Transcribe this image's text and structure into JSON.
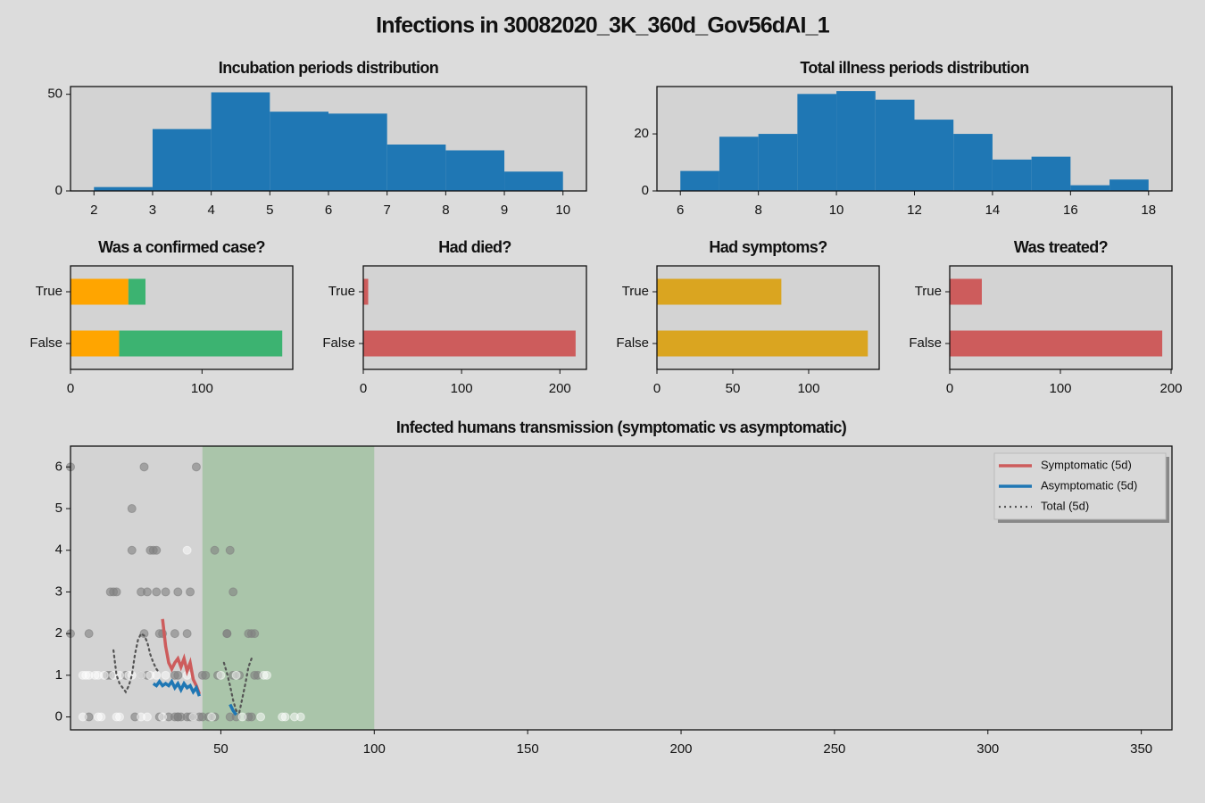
{
  "title": "Infections in 30082020_3K_360d_Gov56dAI_1",
  "chart_data": [
    {
      "type": "histogram",
      "title": "Incubation periods distribution",
      "color": "#1f77b4",
      "bins": [
        2,
        3,
        4,
        5,
        6,
        7,
        8,
        9,
        10
      ],
      "values": [
        2,
        32,
        51,
        41,
        40,
        24,
        21,
        10
      ],
      "xlim": [
        1.6,
        10.4
      ],
      "xticks": [
        2,
        3,
        4,
        5,
        6,
        7,
        8,
        9,
        10
      ],
      "ylim": [
        0,
        54
      ],
      "yticks": [
        0,
        50
      ]
    },
    {
      "type": "histogram",
      "title": "Total illness periods distribution",
      "color": "#1f77b4",
      "bins": [
        6,
        7,
        8,
        9,
        10,
        11,
        12,
        13,
        14,
        15,
        16,
        17,
        18
      ],
      "values": [
        7,
        19,
        20,
        34,
        35,
        32,
        25,
        20,
        11,
        12,
        2,
        4
      ],
      "xlim": [
        5.4,
        18.6
      ],
      "xticks": [
        6,
        8,
        10,
        12,
        14,
        16,
        18
      ],
      "ylim": [
        0,
        36.6
      ],
      "yticks": [
        0,
        20
      ]
    },
    {
      "type": "barh",
      "title": "Was a confirmed case?",
      "categories": [
        "False",
        "True"
      ],
      "series": [
        {
          "color": "#ffa500",
          "values": [
            37,
            44
          ]
        },
        {
          "color": "#3cb371",
          "values": [
            124,
            13
          ]
        }
      ],
      "xlim": [
        0,
        169
      ],
      "xticks": [
        0,
        100
      ]
    },
    {
      "type": "barh",
      "title": "Had died?",
      "categories": [
        "False",
        "True"
      ],
      "series": [
        {
          "color": "#cd5c5c",
          "values": [
            216,
            5
          ]
        }
      ],
      "xlim": [
        0,
        227
      ],
      "xticks": [
        0,
        100,
        200
      ]
    },
    {
      "type": "barh",
      "title": "Had symptoms?",
      "categories": [
        "False",
        "True"
      ],
      "series": [
        {
          "color": "#daa520",
          "values": [
            139,
            82
          ]
        }
      ],
      "xlim": [
        0,
        146.5
      ],
      "xticks": [
        0,
        50,
        100
      ]
    },
    {
      "type": "barh",
      "title": "Was treated?",
      "categories": [
        "False",
        "True"
      ],
      "series": [
        {
          "color": "#cd5c5c",
          "values": [
            192,
            29
          ]
        }
      ],
      "xlim": [
        0,
        200.8
      ],
      "xticks": [
        0,
        100,
        200
      ]
    },
    {
      "type": "scatter",
      "title": "Infected humans transmission (symptomatic vs asymptomatic)",
      "xlim": [
        1,
        360
      ],
      "xticks": [
        50,
        100,
        150,
        200,
        250,
        300,
        350
      ],
      "ylim": [
        -0.31,
        6.5
      ],
      "yticks": [
        0,
        1,
        2,
        3,
        4,
        5,
        6
      ],
      "span": {
        "xlim": [
          44,
          100
        ],
        "color": "#8fbc8f"
      },
      "legend": "upper right",
      "series": [
        {
          "style": "scatter",
          "color": "#808080",
          "alpha": 0.6,
          "x": [
            1,
            25,
            42,
            21,
            21,
            27,
            28,
            29,
            48,
            53,
            14,
            15,
            16,
            24,
            26,
            29,
            32,
            36,
            40,
            54,
            1,
            7,
            25,
            30,
            31,
            35,
            39,
            52,
            52,
            59,
            60,
            61,
            13,
            14,
            19,
            24,
            26,
            35,
            36,
            44,
            45,
            49,
            54,
            56,
            61,
            62,
            7,
            22,
            30,
            33,
            35,
            36,
            36,
            37,
            39,
            40,
            41,
            43,
            44,
            46,
            48,
            53,
            55,
            59,
            60
          ],
          "values": [
            6,
            6,
            6,
            5,
            4,
            4,
            4,
            4,
            4,
            4,
            3,
            3,
            3,
            3,
            3,
            3,
            3,
            3,
            3,
            3,
            2,
            2,
            2,
            2,
            2,
            2,
            2,
            2,
            2,
            2,
            2,
            2,
            1,
            1,
            1,
            1,
            1,
            1,
            1,
            1,
            1,
            1,
            1,
            1,
            1,
            1,
            0,
            0,
            0,
            0,
            0,
            0,
            0,
            0,
            0,
            0,
            0,
            0,
            0,
            0,
            0,
            0,
            0,
            0,
            0
          ]
        },
        {
          "style": "scatter",
          "color": "#ffffff",
          "alpha": 0.5,
          "x": [
            39,
            5,
            6,
            7,
            9,
            10,
            12,
            15,
            17,
            20,
            21,
            24,
            27,
            29,
            32,
            39,
            50,
            55,
            64,
            65,
            5,
            10,
            11,
            16,
            17,
            24,
            26,
            31,
            41,
            47,
            57,
            63,
            70,
            71,
            74,
            76
          ],
          "values": [
            4,
            1,
            1,
            1,
            1,
            1,
            1,
            1,
            1,
            1,
            1,
            1,
            1,
            1,
            1,
            1,
            1,
            1,
            1,
            1,
            0,
            0,
            0,
            0,
            0,
            0,
            0,
            0,
            0,
            0,
            0,
            0,
            0,
            0,
            0,
            0
          ]
        },
        {
          "style": "solid",
          "name": "Symptomatic (5d)",
          "color": "#cd5c5c",
          "x": [
            31,
            32,
            33,
            34,
            35,
            36,
            37,
            38,
            39,
            40,
            41,
            42,
            43
          ],
          "values": [
            2.35,
            1.7,
            1.3,
            1.15,
            1.3,
            1.4,
            1.2,
            1.4,
            1.1,
            1.3,
            0.9,
            0.75,
            0.55
          ]
        },
        {
          "style": "solid",
          "name": "Asymptomatic (5d)",
          "color": "#1f77b4",
          "x": [
            28,
            29,
            30,
            31,
            32,
            33,
            34,
            35,
            36,
            37,
            38,
            39,
            40,
            41,
            42,
            43,
            null,
            53,
            54,
            55
          ],
          "values": [
            0.8,
            0.75,
            0.85,
            0.75,
            0.8,
            0.75,
            0.85,
            0.7,
            0.8,
            0.65,
            0.8,
            0.7,
            0.75,
            0.6,
            0.7,
            0.5,
            null,
            0.3,
            0.15,
            0.05
          ]
        },
        {
          "style": "dotted",
          "name": "Total (5d)",
          "color": "#555555",
          "x": [
            15,
            16,
            17,
            18,
            19,
            20,
            21,
            22,
            23,
            24,
            25,
            26,
            27,
            28,
            29,
            30,
            null,
            51,
            52,
            53,
            54,
            55,
            56,
            57,
            58,
            59,
            60
          ],
          "values": [
            1.6,
            1.0,
            0.8,
            0.7,
            0.6,
            0.75,
            1.0,
            1.5,
            1.85,
            2.0,
            1.95,
            1.8,
            1.5,
            1.3,
            1.15,
            1.05,
            null,
            1.3,
            1.05,
            0.75,
            0.4,
            0.15,
            0.1,
            0.45,
            0.8,
            1.2,
            1.4
          ]
        }
      ]
    }
  ]
}
